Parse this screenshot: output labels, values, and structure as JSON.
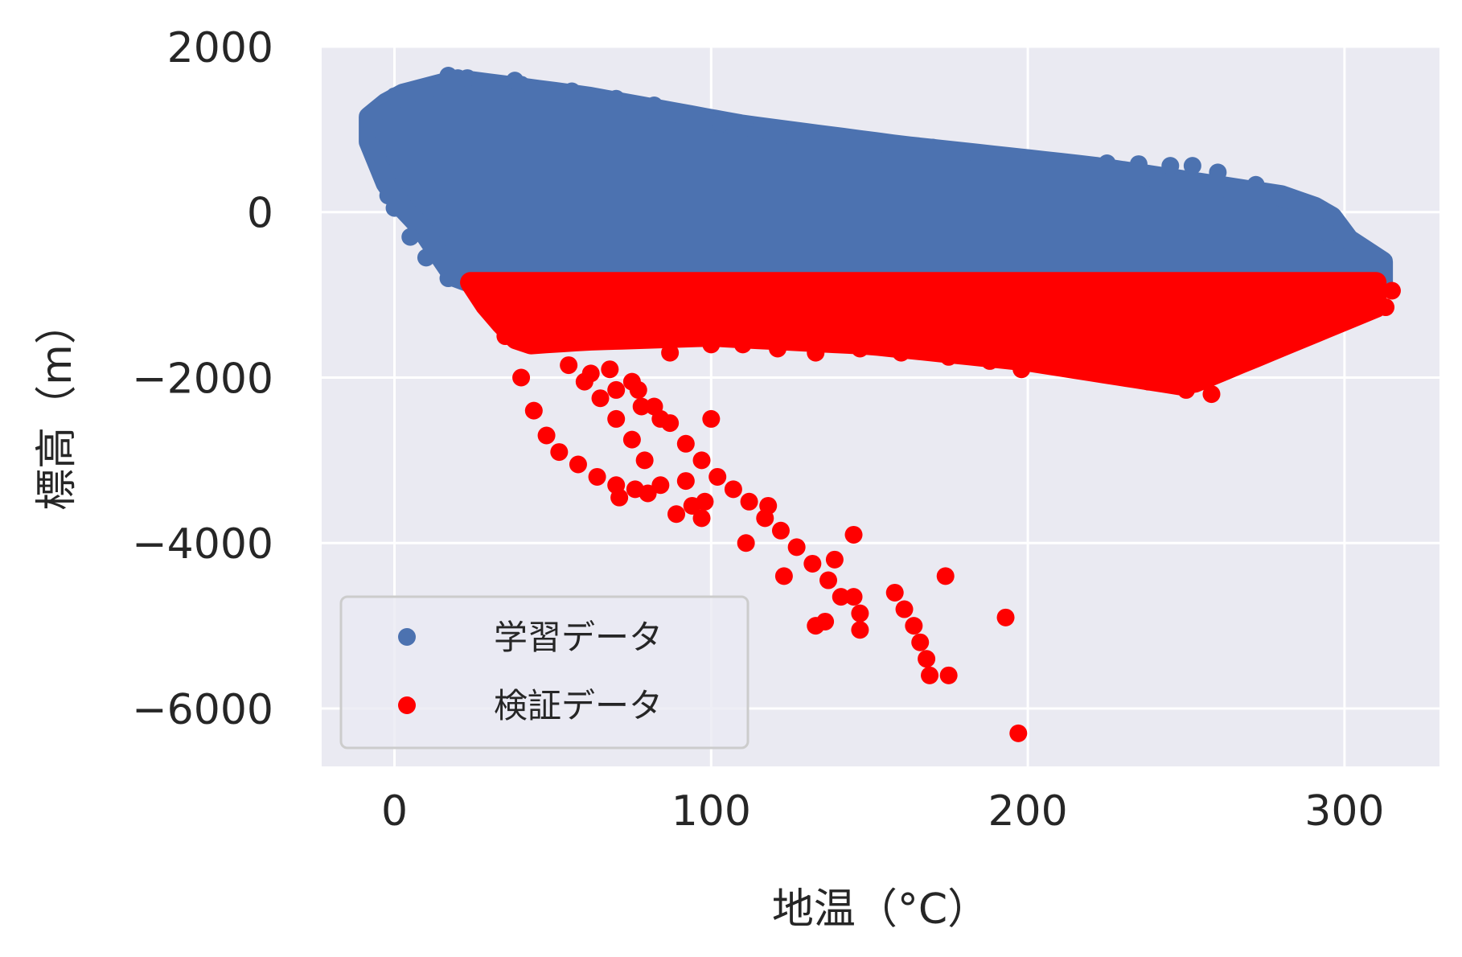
{
  "chart_data": {
    "type": "scatter",
    "xlabel": "地温（°C）",
    "ylabel": "標高（m）",
    "xlim": [
      -23,
      330
    ],
    "ylim": [
      -6700,
      2000
    ],
    "xticks": [
      0,
      100,
      200,
      300
    ],
    "yticks": [
      2000,
      0,
      -2000,
      -4000,
      -6000
    ],
    "ytick_labels": [
      "2000",
      "0",
      "−2000",
      "−4000",
      "−6000"
    ],
    "grid": true,
    "legend_position": "lower-left",
    "series": [
      {
        "name": "学習データ",
        "color": "#4c72b0",
        "region_upper": [
          [
            -8,
            1150
          ],
          [
            0,
            1400
          ],
          [
            20,
            1600
          ],
          [
            60,
            1400
          ],
          [
            110,
            1050
          ],
          [
            160,
            800
          ],
          [
            220,
            550
          ],
          [
            280,
            200
          ],
          [
            295,
            0
          ],
          [
            300,
            -300
          ],
          [
            312,
            -600
          ]
        ],
        "region_lower": [
          [
            -8,
            850
          ],
          [
            0,
            100
          ],
          [
            5,
            0
          ],
          [
            20,
            -850
          ],
          [
            312,
            -850
          ]
        ],
        "points": [
          [
            -8,
            1100
          ],
          [
            -5,
            800
          ],
          [
            -3,
            400
          ],
          [
            -2,
            200
          ],
          [
            0,
            1400
          ],
          [
            0,
            50
          ],
          [
            5,
            -300
          ],
          [
            10,
            -550
          ],
          [
            17,
            -800
          ],
          [
            20,
            1620
          ],
          [
            17,
            1650
          ],
          [
            23,
            1620
          ],
          [
            38,
            1590
          ],
          [
            40,
            1540
          ],
          [
            56,
            1460
          ],
          [
            70,
            1370
          ],
          [
            82,
            1290
          ],
          [
            90,
            1180
          ],
          [
            103,
            1070
          ],
          [
            115,
            980
          ],
          [
            125,
            920
          ],
          [
            140,
            870
          ],
          [
            155,
            820
          ],
          [
            162,
            800
          ],
          [
            170,
            780
          ],
          [
            183,
            720
          ],
          [
            190,
            670
          ],
          [
            200,
            620
          ],
          [
            210,
            610
          ],
          [
            225,
            590
          ],
          [
            235,
            580
          ],
          [
            245,
            560
          ],
          [
            252,
            560
          ],
          [
            260,
            480
          ],
          [
            272,
            330
          ],
          [
            280,
            170
          ],
          [
            287,
            100
          ],
          [
            292,
            20
          ],
          [
            295,
            -250
          ],
          [
            305,
            -550
          ],
          [
            312,
            -700
          ]
        ]
      },
      {
        "name": "検証データ",
        "color": "#ff0000",
        "region_upper": [
          [
            24,
            -850
          ],
          [
            312,
            -850
          ],
          [
            315,
            -950
          ]
        ],
        "region_lower": [
          [
            24,
            -850
          ],
          [
            30,
            -1200
          ],
          [
            40,
            -1600
          ],
          [
            60,
            -1550
          ],
          [
            100,
            -1500
          ],
          [
            150,
            -1600
          ],
          [
            200,
            -1800
          ],
          [
            250,
            -2100
          ],
          [
            310,
            -1150
          ]
        ],
        "points": [
          [
            315,
            -950
          ],
          [
            313,
            -1150
          ],
          [
            305,
            -1100
          ],
          [
            290,
            -1300
          ],
          [
            280,
            -1350
          ],
          [
            270,
            -1450
          ],
          [
            258,
            -2200
          ],
          [
            250,
            -2150
          ],
          [
            238,
            -2050
          ],
          [
            224,
            -1950
          ],
          [
            210,
            -1850
          ],
          [
            198,
            -1900
          ],
          [
            188,
            -1800
          ],
          [
            175,
            -1750
          ],
          [
            160,
            -1700
          ],
          [
            147,
            -1650
          ],
          [
            133,
            -1700
          ],
          [
            121,
            -1650
          ],
          [
            110,
            -1600
          ],
          [
            100,
            -1600
          ],
          [
            87,
            -1700
          ],
          [
            80,
            -1450
          ],
          [
            70,
            -1400
          ],
          [
            30,
            -1200
          ],
          [
            35,
            -1500
          ],
          [
            40,
            -2000
          ],
          [
            44,
            -2400
          ],
          [
            48,
            -2700
          ],
          [
            52,
            -2900
          ],
          [
            58,
            -3050
          ],
          [
            64,
            -3200
          ],
          [
            70,
            -3300
          ],
          [
            71,
            -3450
          ],
          [
            76,
            -3350
          ],
          [
            80,
            -3400
          ],
          [
            84,
            -3300
          ],
          [
            55,
            -1850
          ],
          [
            60,
            -2050
          ],
          [
            65,
            -2250
          ],
          [
            70,
            -2500
          ],
          [
            75,
            -2750
          ],
          [
            79,
            -3000
          ],
          [
            62,
            -1950
          ],
          [
            70,
            -2150
          ],
          [
            78,
            -2350
          ],
          [
            84,
            -2500
          ],
          [
            68,
            -1900
          ],
          [
            75,
            -2050
          ],
          [
            77,
            -2150
          ],
          [
            82,
            -2350
          ],
          [
            87,
            -2550
          ],
          [
            92,
            -2800
          ],
          [
            97,
            -3000
          ],
          [
            102,
            -3200
          ],
          [
            107,
            -3350
          ],
          [
            112,
            -3500
          ],
          [
            117,
            -3700
          ],
          [
            122,
            -3850
          ],
          [
            127,
            -4050
          ],
          [
            132,
            -4250
          ],
          [
            137,
            -4450
          ],
          [
            141,
            -4650
          ],
          [
            100,
            -2500
          ],
          [
            92,
            -3250
          ],
          [
            89,
            -3650
          ],
          [
            94,
            -3550
          ],
          [
            97,
            -3700
          ],
          [
            98,
            -3500
          ],
          [
            111,
            -4000
          ],
          [
            118,
            -3550
          ],
          [
            123,
            -4400
          ],
          [
            133,
            -5000
          ],
          [
            136,
            -4950
          ],
          [
            139,
            -4200
          ],
          [
            145,
            -3900
          ],
          [
            145,
            -4650
          ],
          [
            147,
            -4850
          ],
          [
            147,
            -5050
          ],
          [
            158,
            -4600
          ],
          [
            161,
            -4800
          ],
          [
            164,
            -5000
          ],
          [
            166,
            -5200
          ],
          [
            168,
            -5400
          ],
          [
            169,
            -5600
          ],
          [
            175,
            -5600
          ],
          [
            174,
            -4400
          ],
          [
            193,
            -4900
          ],
          [
            197,
            -6300
          ]
        ]
      }
    ]
  }
}
